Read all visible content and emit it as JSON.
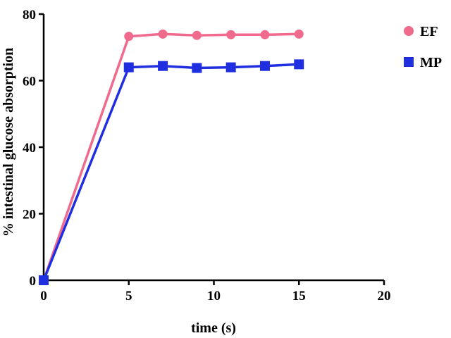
{
  "chart_data": {
    "type": "line",
    "title": "",
    "xlabel": "time (s)",
    "ylabel": "% intestinal glucose absorption",
    "xlim": [
      0,
      20
    ],
    "ylim": [
      0,
      80
    ],
    "xticks": [
      "0",
      "5",
      "10",
      "15",
      "20"
    ],
    "yticks": [
      "0",
      "20",
      "40",
      "60",
      "80"
    ],
    "grid": false,
    "legend_position": "top-right",
    "series": [
      {
        "name": "EF",
        "color": "#f06a8e",
        "marker": "circle",
        "x": [
          0,
          5,
          7,
          9,
          11,
          13,
          15
        ],
        "y": [
          0,
          73.3,
          74.0,
          73.6,
          73.8,
          73.8,
          74.0
        ]
      },
      {
        "name": "MP",
        "color": "#1f2fe0",
        "marker": "square",
        "x": [
          0,
          5,
          7,
          9,
          11,
          13,
          15
        ],
        "y": [
          0,
          64.0,
          64.4,
          63.8,
          64.0,
          64.4,
          64.9
        ]
      }
    ]
  }
}
